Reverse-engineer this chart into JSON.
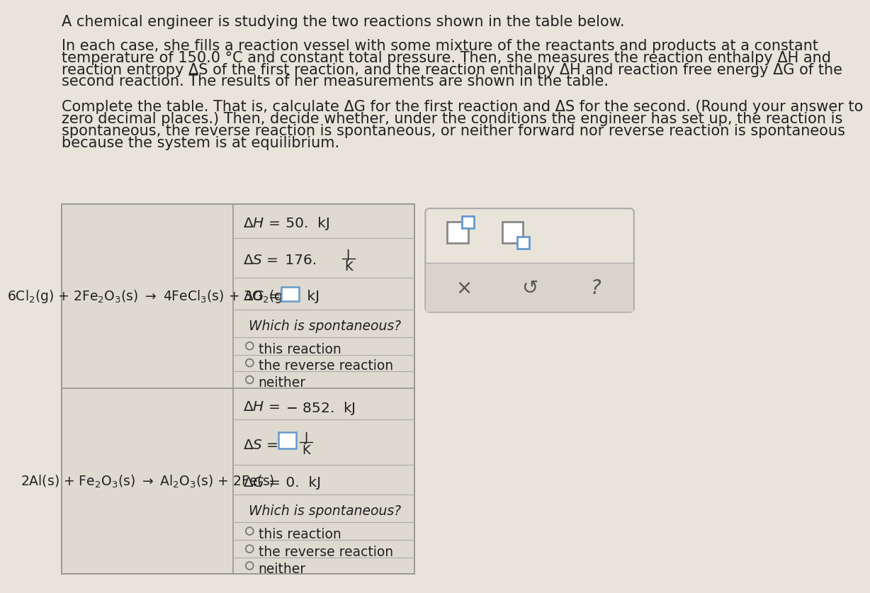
{
  "bg_color": "#e8e4da",
  "text_color": "#222222",
  "table_left_bg": "#dedad0",
  "table_right_bg": "#eae6dc",
  "tool_box_bg": "#e8e4da",
  "tool_bottom_bg": "#d8d4ca",
  "input_box_color": "#6699cc",
  "icon_gray": "#888888",
  "line_color": "#aaaaaa",
  "title_line1": "A chemical engineer is studying the two reactions shown in the table below.",
  "para1_lines": [
    "In each case, she fills a reaction vessel with some mixture of the reactants and products at a constant",
    "temperature of 150.0 °C and constant total pressure. Then, she measures the reaction enthalpy ΔH and",
    "reaction entropy ΔS of the first reaction, and the reaction enthalpy ΔH and reaction free energy ΔG of the",
    "second reaction. The results of her measurements are shown in the table."
  ],
  "para2_lines": [
    "Complete the table. That is, calculate ΔG for the first reaction and ΔS for the second. (Round your answer to",
    "zero decimal places.) Then, decide whether, under the conditions the engineer has set up, the reaction is",
    "spontaneous, the reverse reaction is spontaneous, or neither forward nor reverse reaction is spontaneous",
    "because the system is at equilibrium."
  ],
  "rxn1_opt1": "this reaction",
  "rxn1_opt2": "the reverse reaction",
  "rxn1_opt3": "neither",
  "rxn2_opt1": "this reaction",
  "rxn2_opt2": "the reverse reaction",
  "rxn2_opt3": "neither"
}
